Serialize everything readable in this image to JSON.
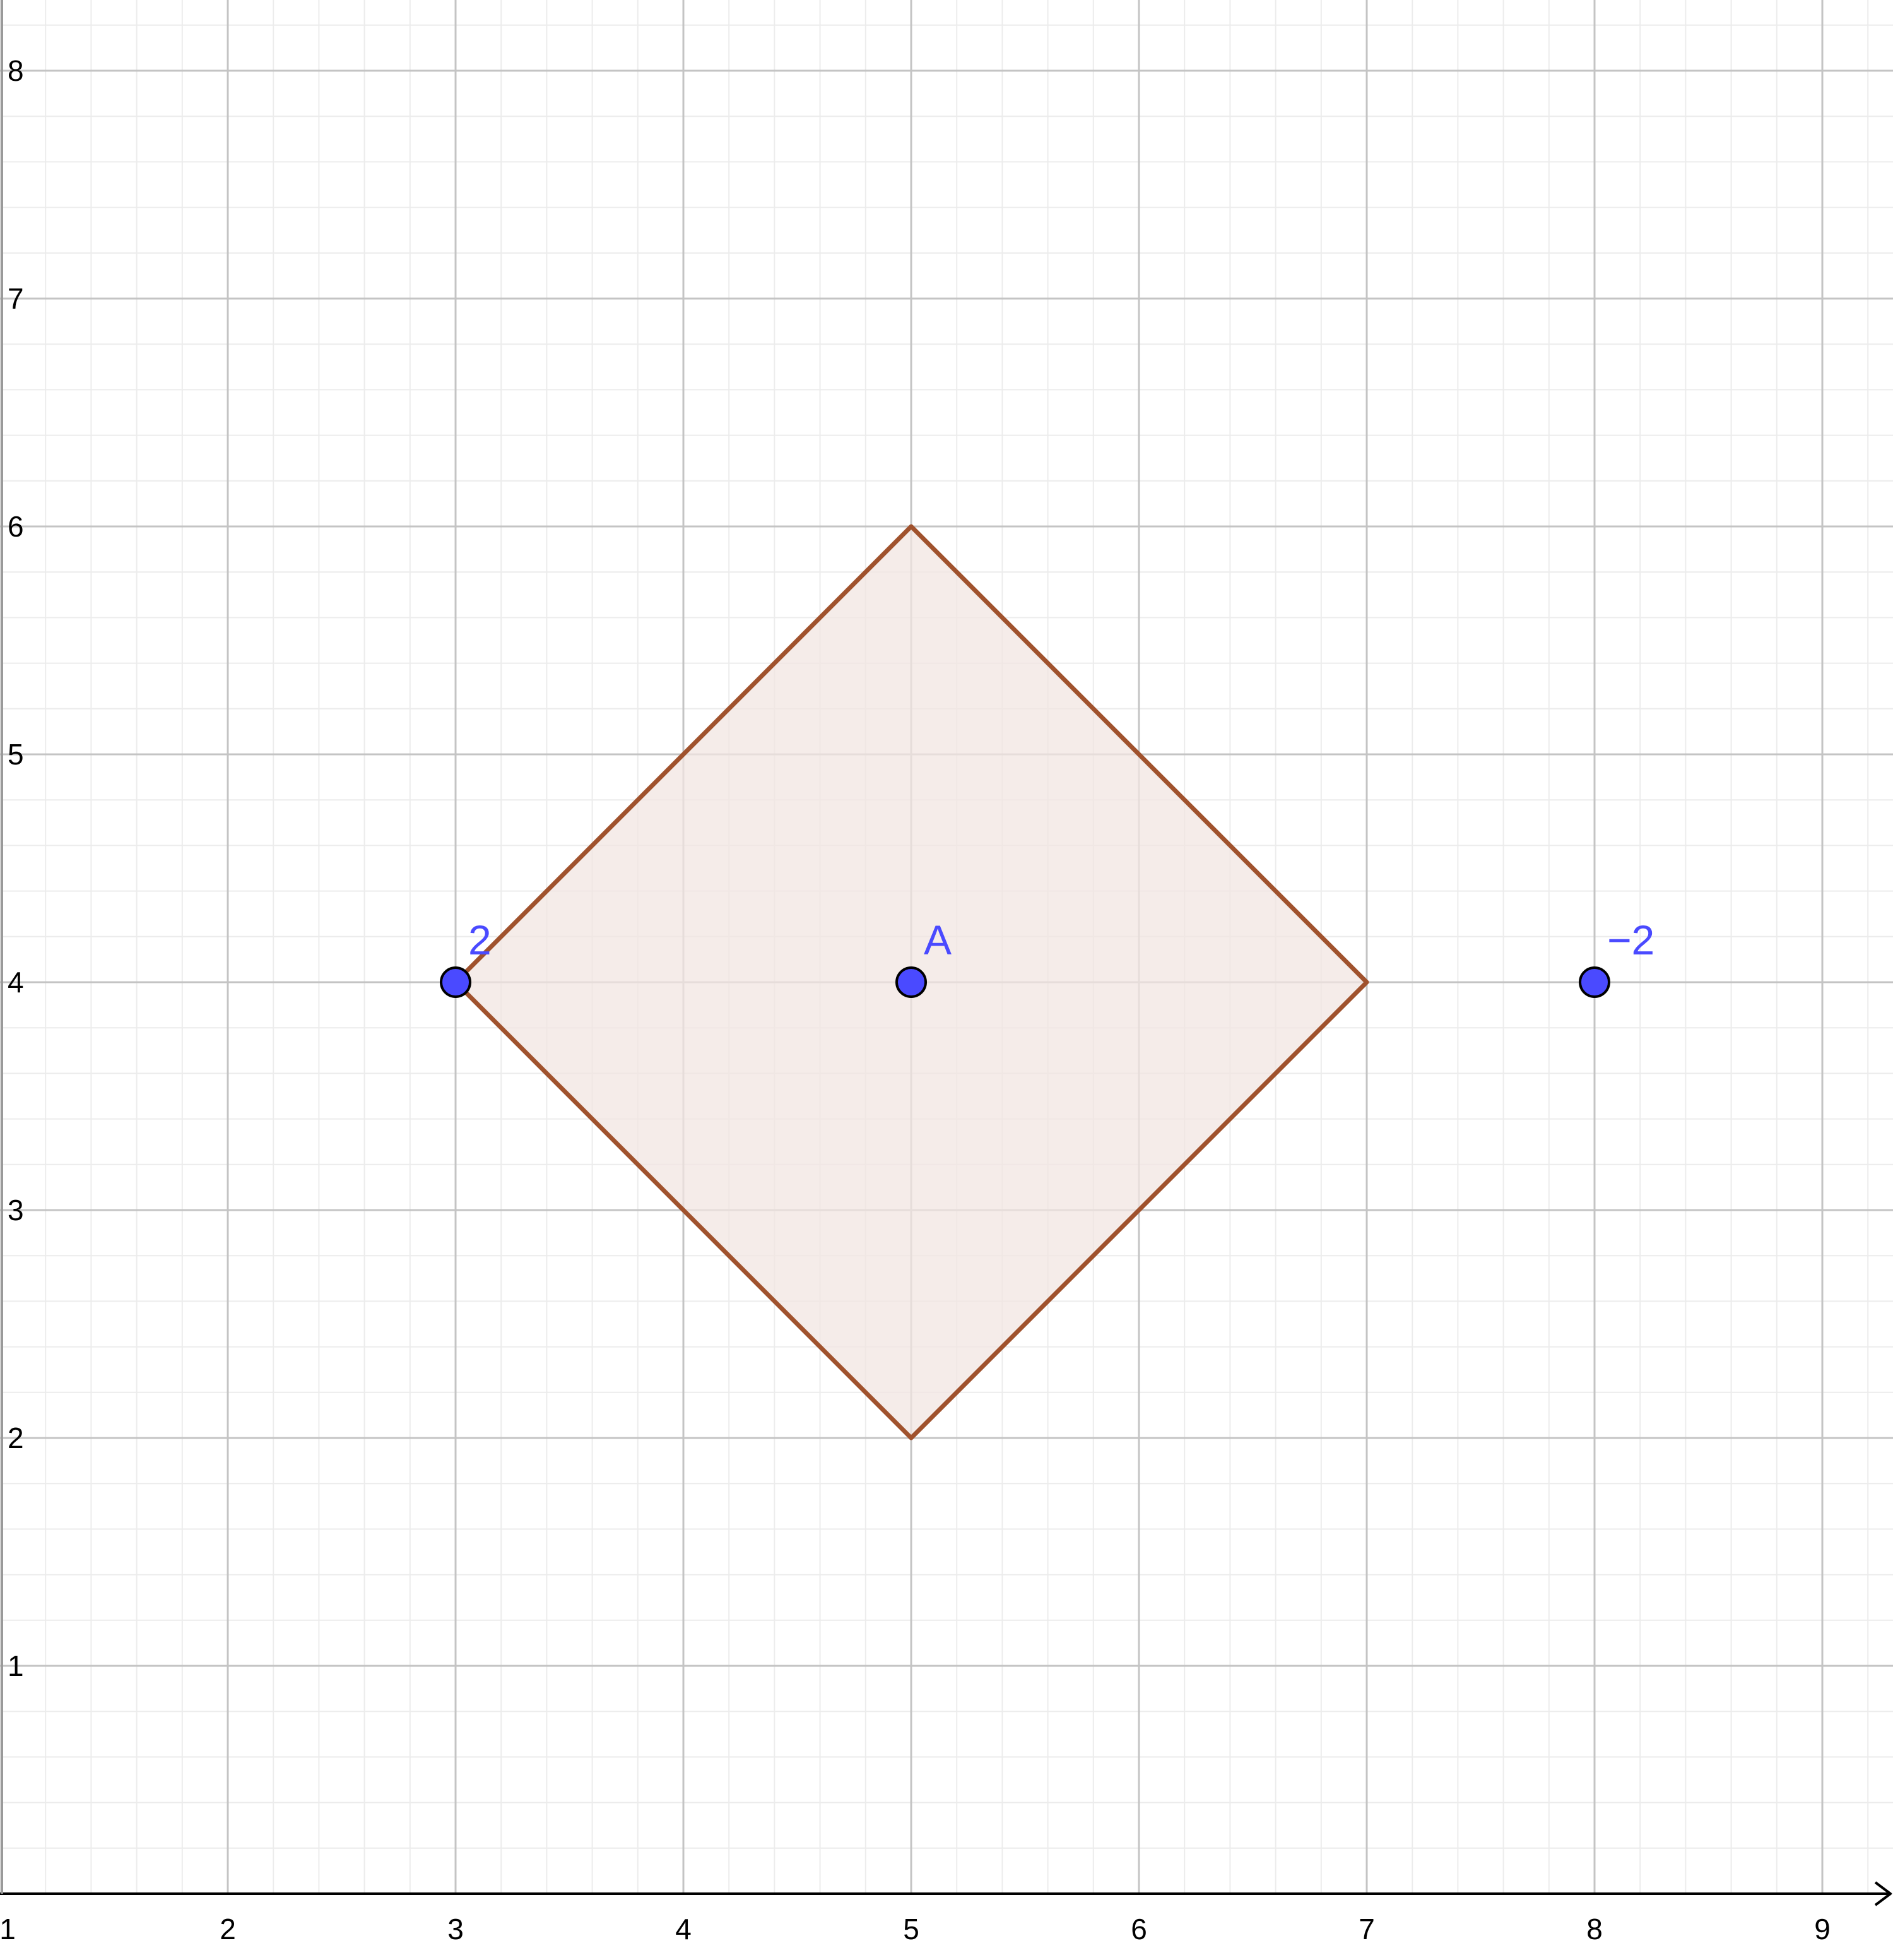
{
  "chart_data": {
    "type": "scatter",
    "title": "",
    "xlabel": "",
    "ylabel": "",
    "xlim": [
      1,
      9.3
    ],
    "ylim": [
      0,
      8.3
    ],
    "grid": true,
    "minor_grid": true,
    "x_ticks": [
      {
        "value": 1,
        "label": "1"
      },
      {
        "value": 2,
        "label": "2"
      },
      {
        "value": 3,
        "label": "3"
      },
      {
        "value": 4,
        "label": "4"
      },
      {
        "value": 5,
        "label": "5"
      },
      {
        "value": 6,
        "label": "6"
      },
      {
        "value": 7,
        "label": "7"
      },
      {
        "value": 8,
        "label": "8"
      },
      {
        "value": 9,
        "label": "9"
      }
    ],
    "y_ticks": [
      {
        "value": 1,
        "label": "1"
      },
      {
        "value": 2,
        "label": "2"
      },
      {
        "value": 3,
        "label": "3"
      },
      {
        "value": 4,
        "label": "4"
      },
      {
        "value": 5,
        "label": "5"
      },
      {
        "value": 6,
        "label": "6"
      },
      {
        "value": 7,
        "label": "7"
      },
      {
        "value": 8,
        "label": "8"
      }
    ],
    "polygon": {
      "vertices": [
        [
          3,
          4
        ],
        [
          5,
          6
        ],
        [
          7,
          4
        ],
        [
          5,
          2
        ]
      ],
      "stroke_color": "#a0522d",
      "fill_color": "#f2e6e1"
    },
    "points": [
      {
        "x": 3,
        "y": 4,
        "label": "2"
      },
      {
        "x": 5,
        "y": 4,
        "label": "A"
      },
      {
        "x": 8,
        "y": 4,
        "label": "−2"
      }
    ],
    "point_color": "#4a4aff",
    "label_color": "#4a4aff"
  }
}
